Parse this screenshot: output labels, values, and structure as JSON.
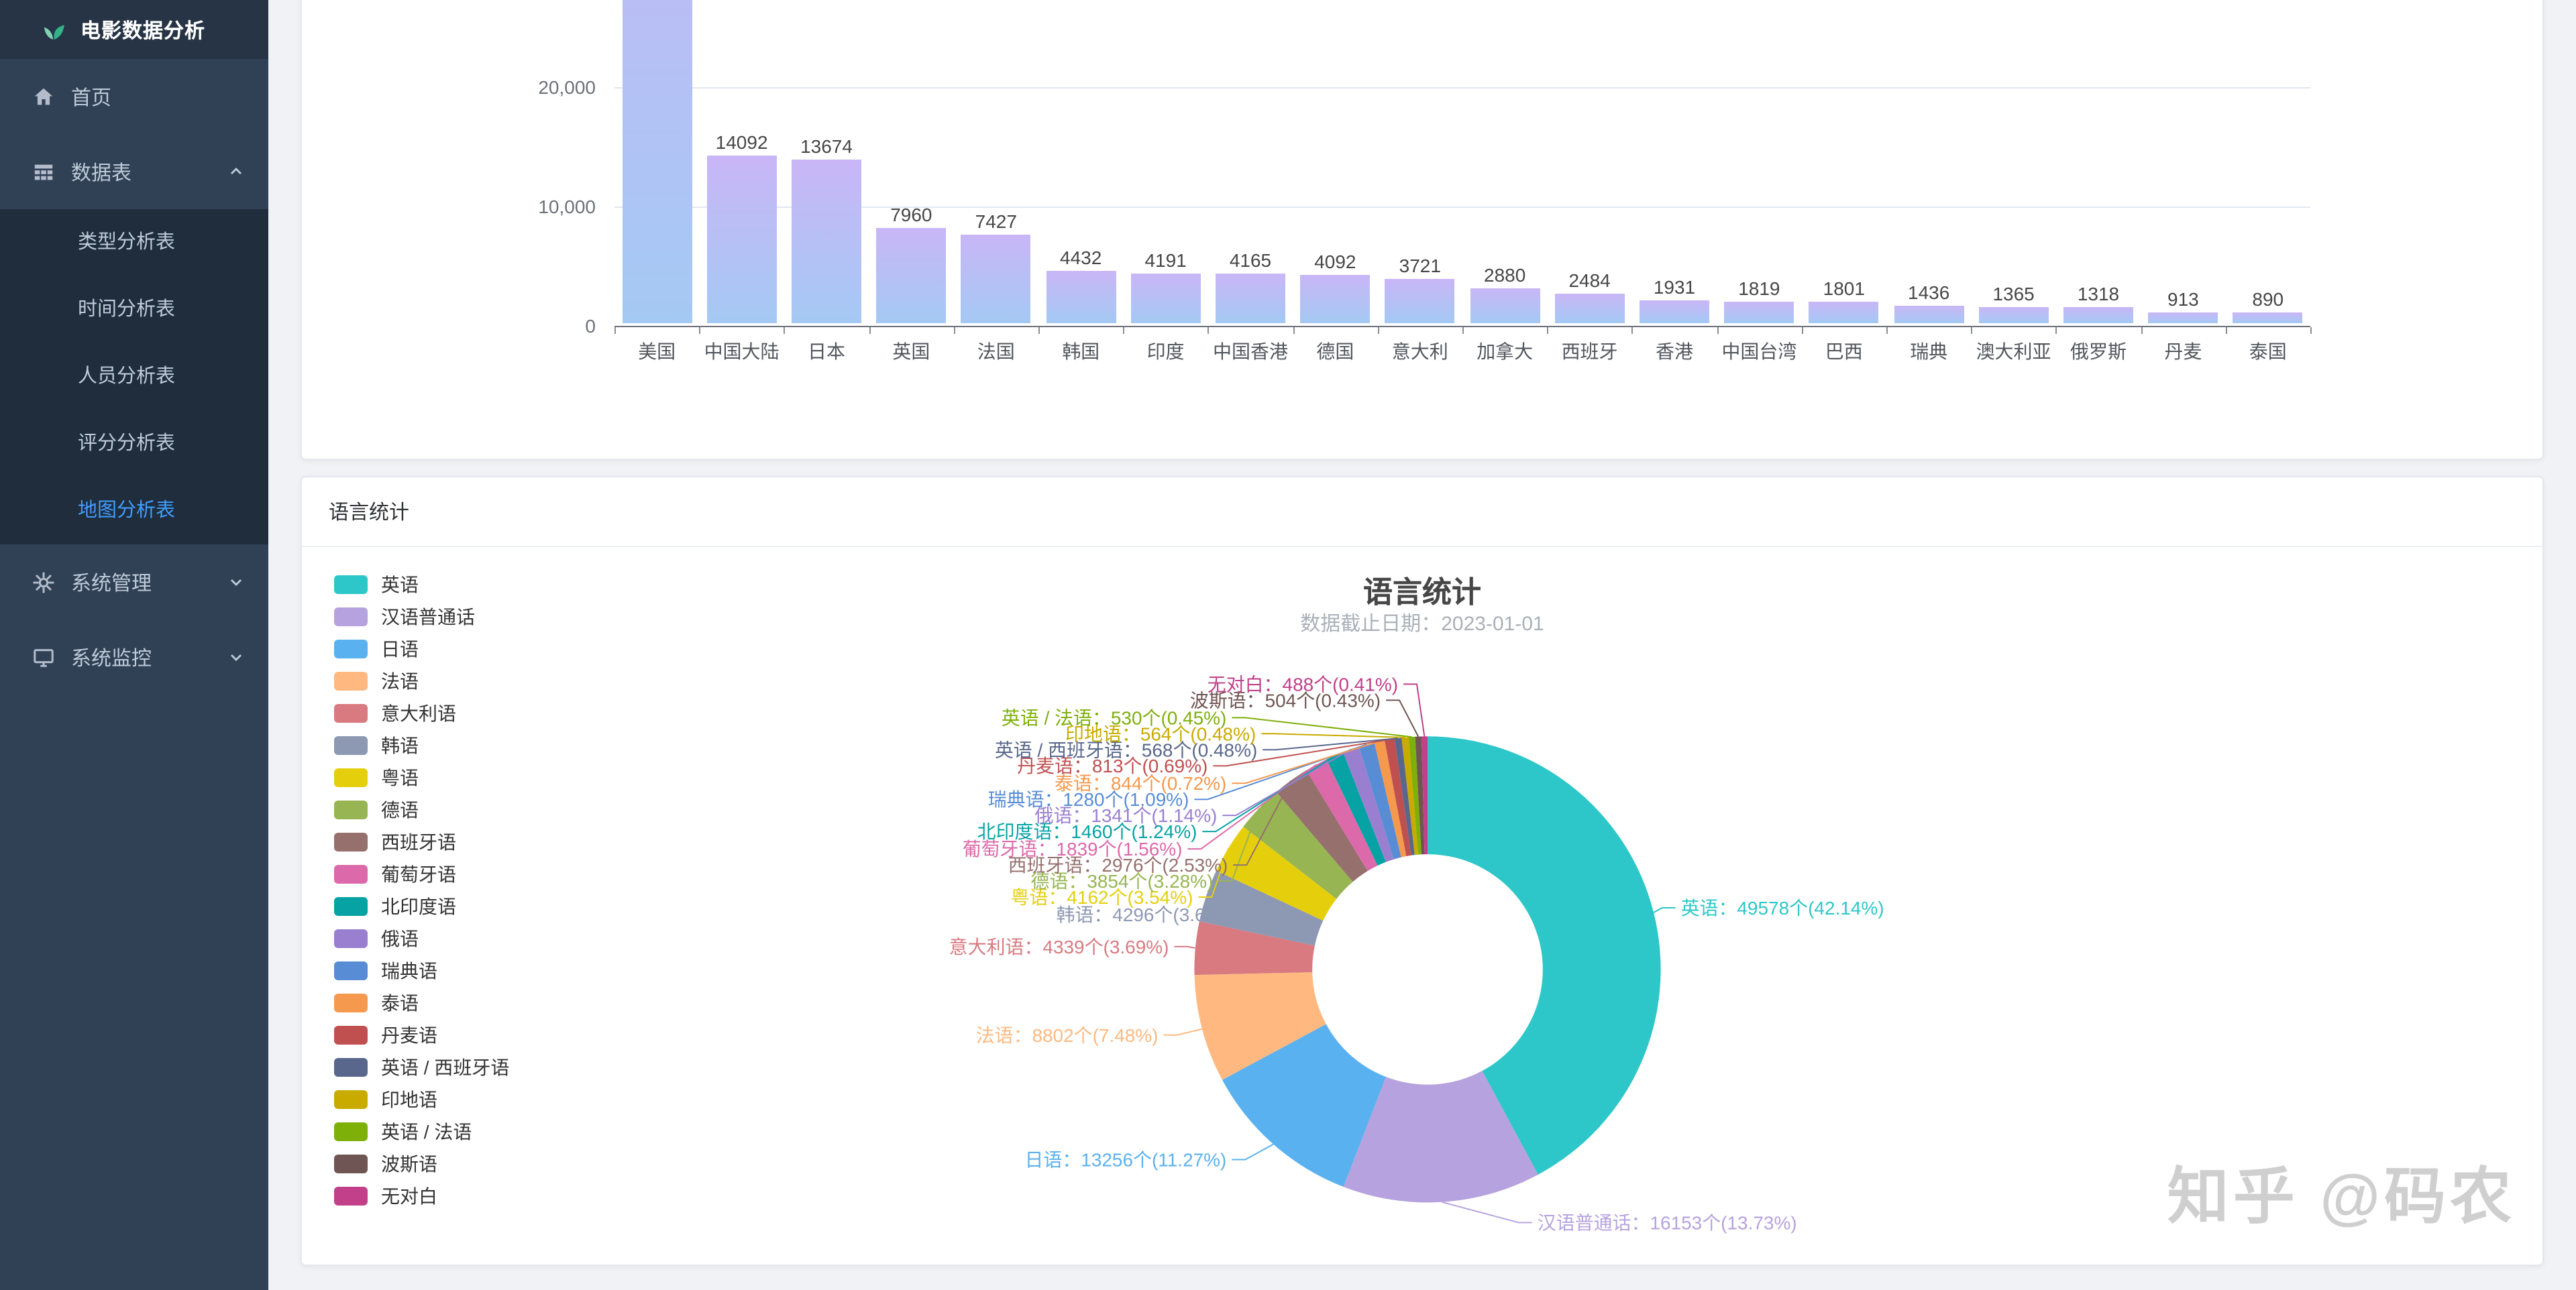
{
  "sidebar": {
    "logo": "电影数据分析",
    "items": [
      {
        "label": "首页",
        "icon": "home-icon"
      },
      {
        "label": "数据表",
        "icon": "table-icon",
        "expanded": true,
        "children": [
          "类型分析表",
          "时间分析表",
          "人员分析表",
          "评分分析表",
          "地图分析表"
        ],
        "active_child": "地图分析表"
      },
      {
        "label": "系统管理",
        "icon": "gear-icon",
        "expanded": false
      },
      {
        "label": "系统监控",
        "icon": "monitor-icon",
        "expanded": false
      }
    ]
  },
  "cards": {
    "language_card": {
      "header": "语言统计"
    }
  },
  "watermark": "知乎 @码农",
  "chart_data": [
    {
      "type": "bar",
      "categories": [
        "美国",
        "中国大陆",
        "日本",
        "英国",
        "法国",
        "韩国",
        "印度",
        "中国香港",
        "德国",
        "意大利",
        "加拿大",
        "西班牙",
        "香港",
        "中国台湾",
        "巴西",
        "瑞典",
        "澳大利亚",
        "俄罗斯",
        "丹麦",
        "泰国"
      ],
      "values": [
        null,
        14092,
        13674,
        7960,
        7427,
        4432,
        4191,
        4165,
        4092,
        3721,
        2880,
        2484,
        1931,
        1819,
        1801,
        1436,
        1365,
        1318,
        913,
        890
      ],
      "y_ticks": [
        0,
        10000,
        20000
      ],
      "bar_color_top": "#c9b6f6",
      "bar_color_bottom": "#a4c9f3",
      "grid": true
    },
    {
      "type": "pie",
      "donut": true,
      "title": "语言统计",
      "subtitle": "数据截止日期：2023-01-01",
      "legend_position": "left",
      "items": [
        {
          "name": "英语",
          "value": 49578,
          "pct": 42.14,
          "color": "#2ec7c9"
        },
        {
          "name": "汉语普通话",
          "value": 16153,
          "pct": 13.73,
          "color": "#b6a2de"
        },
        {
          "name": "日语",
          "value": 13256,
          "pct": 11.27,
          "color": "#5ab1ef"
        },
        {
          "name": "法语",
          "value": 8802,
          "pct": 7.48,
          "color": "#ffb980"
        },
        {
          "name": "意大利语",
          "value": 4339,
          "pct": 3.69,
          "color": "#d87a80"
        },
        {
          "name": "韩语",
          "value": 4296,
          "pct": 3.65,
          "color": "#8d98b3"
        },
        {
          "name": "粤语",
          "value": 4162,
          "pct": 3.54,
          "color": "#e5cf0d"
        },
        {
          "name": "德语",
          "value": 3854,
          "pct": 3.28,
          "color": "#97b552"
        },
        {
          "name": "西班牙语",
          "value": 2976,
          "pct": 2.53,
          "color": "#95706d"
        },
        {
          "name": "葡萄牙语",
          "value": 1839,
          "pct": 1.56,
          "color": "#dc69aa"
        },
        {
          "name": "北印度语",
          "value": 1460,
          "pct": 1.24,
          "color": "#07a2a4"
        },
        {
          "name": "俄语",
          "value": 1341,
          "pct": 1.14,
          "color": "#9a7fd1"
        },
        {
          "name": "瑞典语",
          "value": 1280,
          "pct": 1.09,
          "color": "#588dd5"
        },
        {
          "name": "泰语",
          "value": 844,
          "pct": 0.72,
          "color": "#f5994e"
        },
        {
          "name": "丹麦语",
          "value": 813,
          "pct": 0.69,
          "color": "#c05050"
        },
        {
          "name": "英语 / 西班牙语",
          "value": 568,
          "pct": 0.48,
          "color": "#59678c"
        },
        {
          "name": "印地语",
          "value": 564,
          "pct": 0.48,
          "color": "#c9ab00"
        },
        {
          "name": "英语 / 法语",
          "value": 530,
          "pct": 0.45,
          "color": "#7eb00a"
        },
        {
          "name": "波斯语",
          "value": 504,
          "pct": 0.43,
          "color": "#6f5553"
        },
        {
          "name": "无对白",
          "value": 488,
          "pct": 0.41,
          "color": "#c14089"
        }
      ]
    }
  ]
}
